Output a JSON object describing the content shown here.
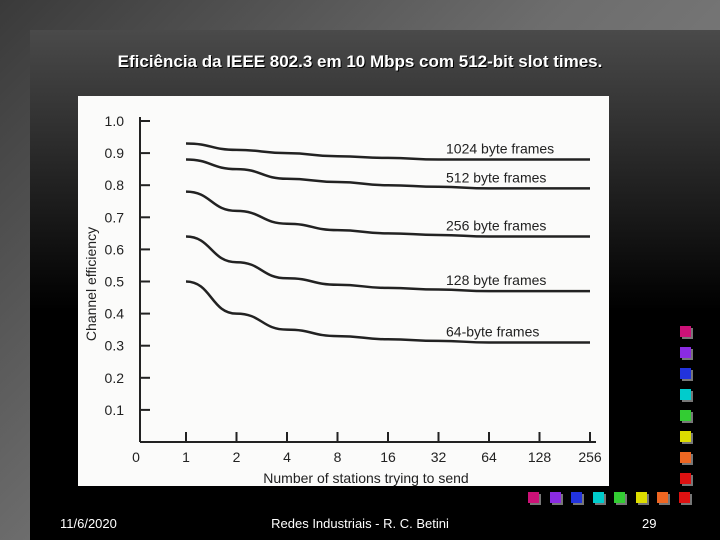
{
  "slide": {
    "title": "Eficiência da IEEE 802.3 em 10 Mbps com 512-bit slot times.",
    "date": "11/6/2020",
    "author": "Redes Industriais - R. C. Betini",
    "page_number": "29"
  },
  "decor_colors": [
    "#cc1177",
    "#8a2be2",
    "#2233dd",
    "#00cccc",
    "#33cc33",
    "#dddd00",
    "#ee6622",
    "#dd1111"
  ],
  "chart_data": {
    "type": "line",
    "xlabel": "Number of stations trying to send",
    "ylabel": "Channel efficiency",
    "x": [
      1,
      2,
      4,
      8,
      16,
      32,
      64,
      128,
      256
    ],
    "x_ticklabels": [
      "0",
      "1",
      "2",
      "4",
      "8",
      "16",
      "32",
      "64",
      "128",
      "256"
    ],
    "y_ticklabels": [
      "0.1",
      "0.2",
      "0.3",
      "0.4",
      "0.5",
      "0.6",
      "0.7",
      "0.8",
      "0.9",
      "1.0"
    ],
    "ylim": [
      0,
      1.0
    ],
    "grid": false,
    "series": [
      {
        "name": "1024 byte frames",
        "values": [
          0.93,
          0.91,
          0.9,
          0.89,
          0.885,
          0.88,
          0.88,
          0.88,
          0.88
        ]
      },
      {
        "name": "512 byte frames",
        "values": [
          0.88,
          0.85,
          0.82,
          0.81,
          0.8,
          0.795,
          0.79,
          0.79,
          0.79
        ]
      },
      {
        "name": "256 byte frames",
        "values": [
          0.78,
          0.72,
          0.68,
          0.66,
          0.65,
          0.645,
          0.64,
          0.64,
          0.64
        ]
      },
      {
        "name": "128 byte frames",
        "values": [
          0.64,
          0.56,
          0.51,
          0.49,
          0.48,
          0.475,
          0.47,
          0.47,
          0.47
        ]
      },
      {
        "name": "64-byte frames",
        "values": [
          0.5,
          0.4,
          0.35,
          0.33,
          0.32,
          0.315,
          0.31,
          0.31,
          0.31
        ]
      }
    ]
  }
}
